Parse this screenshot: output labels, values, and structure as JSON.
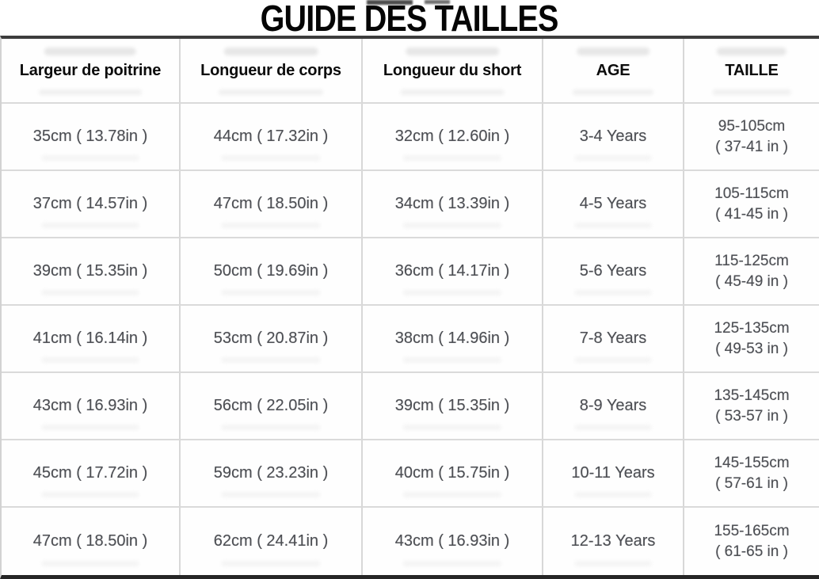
{
  "title": "GUIDE DES TAILLES",
  "accent_colors": {
    "header_text": "#0c0c0c",
    "data_text": "#4d4f54",
    "separator": "#d8d8d8",
    "top_rule": "#3d3d3d",
    "bottom_rule": "#262626"
  },
  "table": {
    "columns": [
      {
        "label": "Largeur de poitrine"
      },
      {
        "label": "Longueur de corps"
      },
      {
        "label": "Longueur du short"
      },
      {
        "label": "AGE"
      },
      {
        "label": "TAILLE"
      }
    ],
    "rows": [
      {
        "chest": "35cm ( 13.78in )",
        "body": "44cm ( 17.32in )",
        "short": "32cm ( 12.60in )",
        "age": "3-4 Years",
        "size_cm": "95-105cm",
        "size_in": "( 37-41 in )"
      },
      {
        "chest": "37cm ( 14.57in )",
        "body": "47cm ( 18.50in )",
        "short": "34cm ( 13.39in )",
        "age": "4-5 Years",
        "size_cm": "105-115cm",
        "size_in": "( 41-45 in )"
      },
      {
        "chest": "39cm ( 15.35in )",
        "body": "50cm ( 19.69in )",
        "short": "36cm ( 14.17in )",
        "age": "5-6 Years",
        "size_cm": "115-125cm",
        "size_in": "( 45-49 in )"
      },
      {
        "chest": "41cm ( 16.14in )",
        "body": "53cm ( 20.87in )",
        "short": "38cm ( 14.96in )",
        "age": "7-8 Years",
        "size_cm": "125-135cm",
        "size_in": "( 49-53 in )"
      },
      {
        "chest": "43cm ( 16.93in )",
        "body": "56cm ( 22.05in )",
        "short": "39cm ( 15.35in )",
        "age": "8-9 Years",
        "size_cm": "135-145cm",
        "size_in": "( 53-57 in )"
      },
      {
        "chest": "45cm ( 17.72in )",
        "body": "59cm ( 23.23in )",
        "short": "40cm ( 15.75in )",
        "age": "10-11 Years",
        "size_cm": "145-155cm",
        "size_in": "( 57-61 in )"
      },
      {
        "chest": "47cm ( 18.50in )",
        "body": "62cm ( 24.41in )",
        "short": "43cm ( 16.93in )",
        "age": "12-13 Years",
        "size_cm": "155-165cm",
        "size_in": "( 61-65 in )"
      }
    ]
  },
  "chart_data": {
    "type": "table",
    "title": "GUIDE DES TAILLES",
    "columns": [
      "Largeur de poitrine",
      "Longueur de corps",
      "Longueur du short",
      "AGE",
      "TAILLE"
    ],
    "rows": [
      [
        "35cm ( 13.78in )",
        "44cm ( 17.32in )",
        "32cm ( 12.60in )",
        "3-4 Years",
        "95-105cm ( 37-41 in )"
      ],
      [
        "37cm ( 14.57in )",
        "47cm ( 18.50in )",
        "34cm ( 13.39in )",
        "4-5 Years",
        "105-115cm ( 41-45 in )"
      ],
      [
        "39cm ( 15.35in )",
        "50cm ( 19.69in )",
        "36cm ( 14.17in )",
        "5-6 Years",
        "115-125cm ( 45-49 in )"
      ],
      [
        "41cm ( 16.14in )",
        "53cm ( 20.87in )",
        "38cm ( 14.96in )",
        "7-8 Years",
        "125-135cm ( 49-53 in )"
      ],
      [
        "43cm ( 16.93in )",
        "56cm ( 22.05in )",
        "39cm ( 15.35in )",
        "8-9 Years",
        "135-145cm ( 53-57 in )"
      ],
      [
        "45cm ( 17.72in )",
        "59cm ( 23.23in )",
        "40cm ( 15.75in )",
        "10-11 Years",
        "145-155cm ( 57-61 in )"
      ],
      [
        "47cm ( 18.50in )",
        "62cm ( 24.41in )",
        "43cm ( 16.93in )",
        "12-13 Years",
        "155-165cm ( 61-65 in )"
      ]
    ]
  }
}
